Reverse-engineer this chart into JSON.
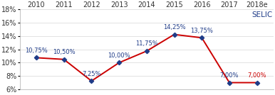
{
  "years": [
    "2010",
    "2011",
    "2012",
    "2013",
    "2014",
    "2015",
    "2016",
    "2017",
    "2018e"
  ],
  "values": [
    10.75,
    10.5,
    7.25,
    10.0,
    11.75,
    14.25,
    13.75,
    7.0,
    7.0
  ],
  "labels": [
    "10,75%",
    "10,50%",
    "7,25%",
    "10,00%",
    "11,75%",
    "14,25%",
    "13,75%",
    "7,00%",
    "7,00%"
  ],
  "label_colors": [
    "#1f3c88",
    "#1f3c88",
    "#1f3c88",
    "#1f3c88",
    "#1f3c88",
    "#1f3c88",
    "#1f3c88",
    "#1f3c88",
    "#cc0000"
  ],
  "line_color": "#cc0000",
  "marker_color": "#1f3c88",
  "legend_text": "SELIC",
  "legend_color": "#1f3c88",
  "ylim": [
    6,
    18
  ],
  "yticks": [
    6,
    8,
    10,
    12,
    14,
    16,
    18
  ],
  "ytick_labels": [
    "6%",
    "8%",
    "10%",
    "12%",
    "14%",
    "16%",
    "18%"
  ],
  "label_fontsize": 6.0,
  "axis_fontsize": 7.0,
  "legend_fontsize": 7.5,
  "background_color": "#ffffff",
  "label_offsets_y": [
    5,
    5,
    5,
    5,
    5,
    5,
    5,
    5,
    5
  ]
}
